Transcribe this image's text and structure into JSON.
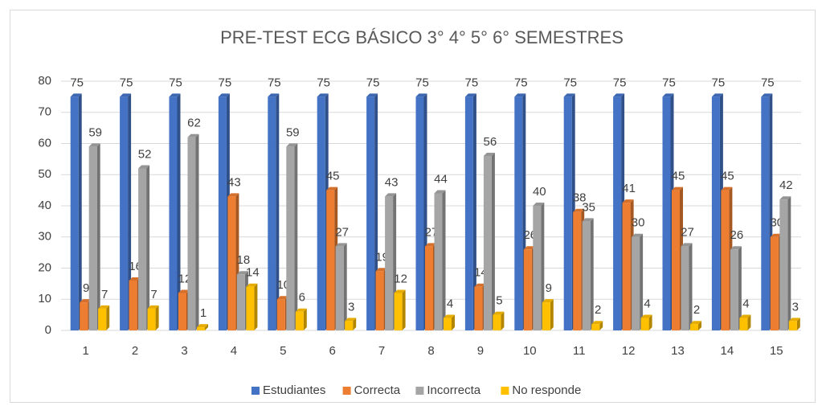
{
  "chart_data": {
    "type": "bar",
    "title": "PRE-TEST ECG BÁSICO 3° 4° 5° 6° SEMESTRES",
    "categories": [
      "1",
      "2",
      "3",
      "4",
      "5",
      "6",
      "7",
      "8",
      "9",
      "10",
      "11",
      "12",
      "13",
      "14",
      "15"
    ],
    "series": [
      {
        "name": "Estudiantes",
        "color": "#4472c4",
        "values": [
          75,
          75,
          75,
          75,
          75,
          75,
          75,
          75,
          75,
          75,
          75,
          75,
          75,
          75,
          75
        ]
      },
      {
        "name": "Correcta",
        "color": "#ed7d31",
        "values": [
          9,
          16,
          12,
          43,
          10,
          45,
          19,
          27,
          14,
          26,
          38,
          41,
          45,
          45,
          30
        ]
      },
      {
        "name": "Incorrecta",
        "color": "#a5a5a5",
        "values": [
          59,
          52,
          62,
          18,
          59,
          27,
          43,
          44,
          56,
          40,
          35,
          30,
          27,
          26,
          42
        ]
      },
      {
        "name": "No responde",
        "color": "#ffc000",
        "values": [
          7,
          7,
          1,
          14,
          6,
          3,
          12,
          4,
          5,
          9,
          2,
          4,
          2,
          4,
          3
        ]
      }
    ],
    "ylim": [
      0,
      80
    ],
    "yticks": [
      0,
      10,
      20,
      30,
      40,
      50,
      60,
      70,
      80
    ],
    "grid": true,
    "legend": "bottom"
  }
}
